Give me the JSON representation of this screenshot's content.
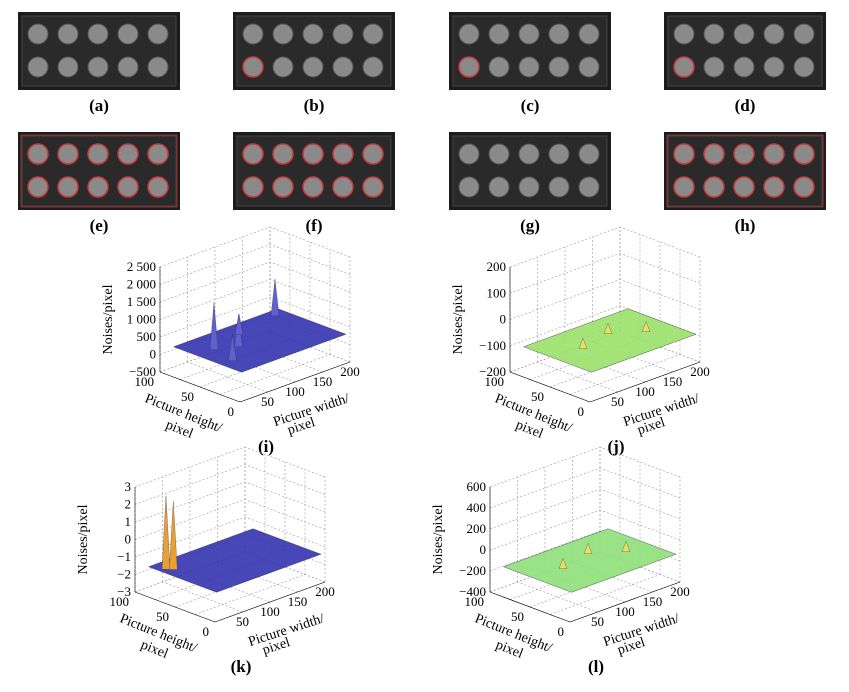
{
  "panels": [
    {
      "label": "(a)"
    },
    {
      "label": "(b)"
    },
    {
      "label": "(c)"
    },
    {
      "label": "(d)"
    },
    {
      "label": "(e)"
    },
    {
      "label": "(f)"
    },
    {
      "label": "(g)"
    },
    {
      "label": "(h)"
    }
  ],
  "plots": [
    {
      "label": "(i)",
      "z_label": "Noises/pixel",
      "height_label": [
        "Picture height/",
        "pixel"
      ],
      "width_label": [
        "Picture width/",
        "pixel"
      ],
      "z_ticks": [
        "2 500",
        "2 000",
        "1 500",
        "1 000",
        "500",
        "0",
        "−500"
      ],
      "height_ticks": [
        "100",
        "50",
        "0"
      ],
      "width_ticks": [
        "50",
        "100",
        "150",
        "200"
      ]
    },
    {
      "label": "(j)",
      "z_label": "Noises/pixel",
      "height_label": [
        "Picture height/",
        "pixel"
      ],
      "width_label": [
        "Picture width/",
        "pixel"
      ],
      "z_ticks": [
        "200",
        "100",
        "0",
        "−100",
        "−200"
      ],
      "height_ticks": [
        "100",
        "50",
        "0"
      ],
      "width_ticks": [
        "50",
        "100",
        "150",
        "200"
      ]
    },
    {
      "label": "(k)",
      "z_label": "Noises/pixel",
      "height_label": [
        "Picture height/",
        "pixel"
      ],
      "width_label": [
        "Picture width/",
        "pixel"
      ],
      "z_ticks": [
        "3",
        "2",
        "1",
        "0",
        "−1",
        "−2",
        "−3"
      ],
      "height_ticks": [
        "100",
        "50",
        "0"
      ],
      "width_ticks": [
        "50",
        "100",
        "150",
        "200"
      ]
    },
    {
      "label": "(l)",
      "z_label": "Noises/pixel",
      "height_label": [
        "Picture height/",
        "pixel"
      ],
      "width_label": [
        "Picture width/",
        "pixel"
      ],
      "z_ticks": [
        "600",
        "400",
        "200",
        "0",
        "−200",
        "−400"
      ],
      "height_ticks": [
        "100",
        "50",
        "0"
      ],
      "width_ticks": [
        "50",
        "100",
        "150",
        "200"
      ]
    }
  ]
}
